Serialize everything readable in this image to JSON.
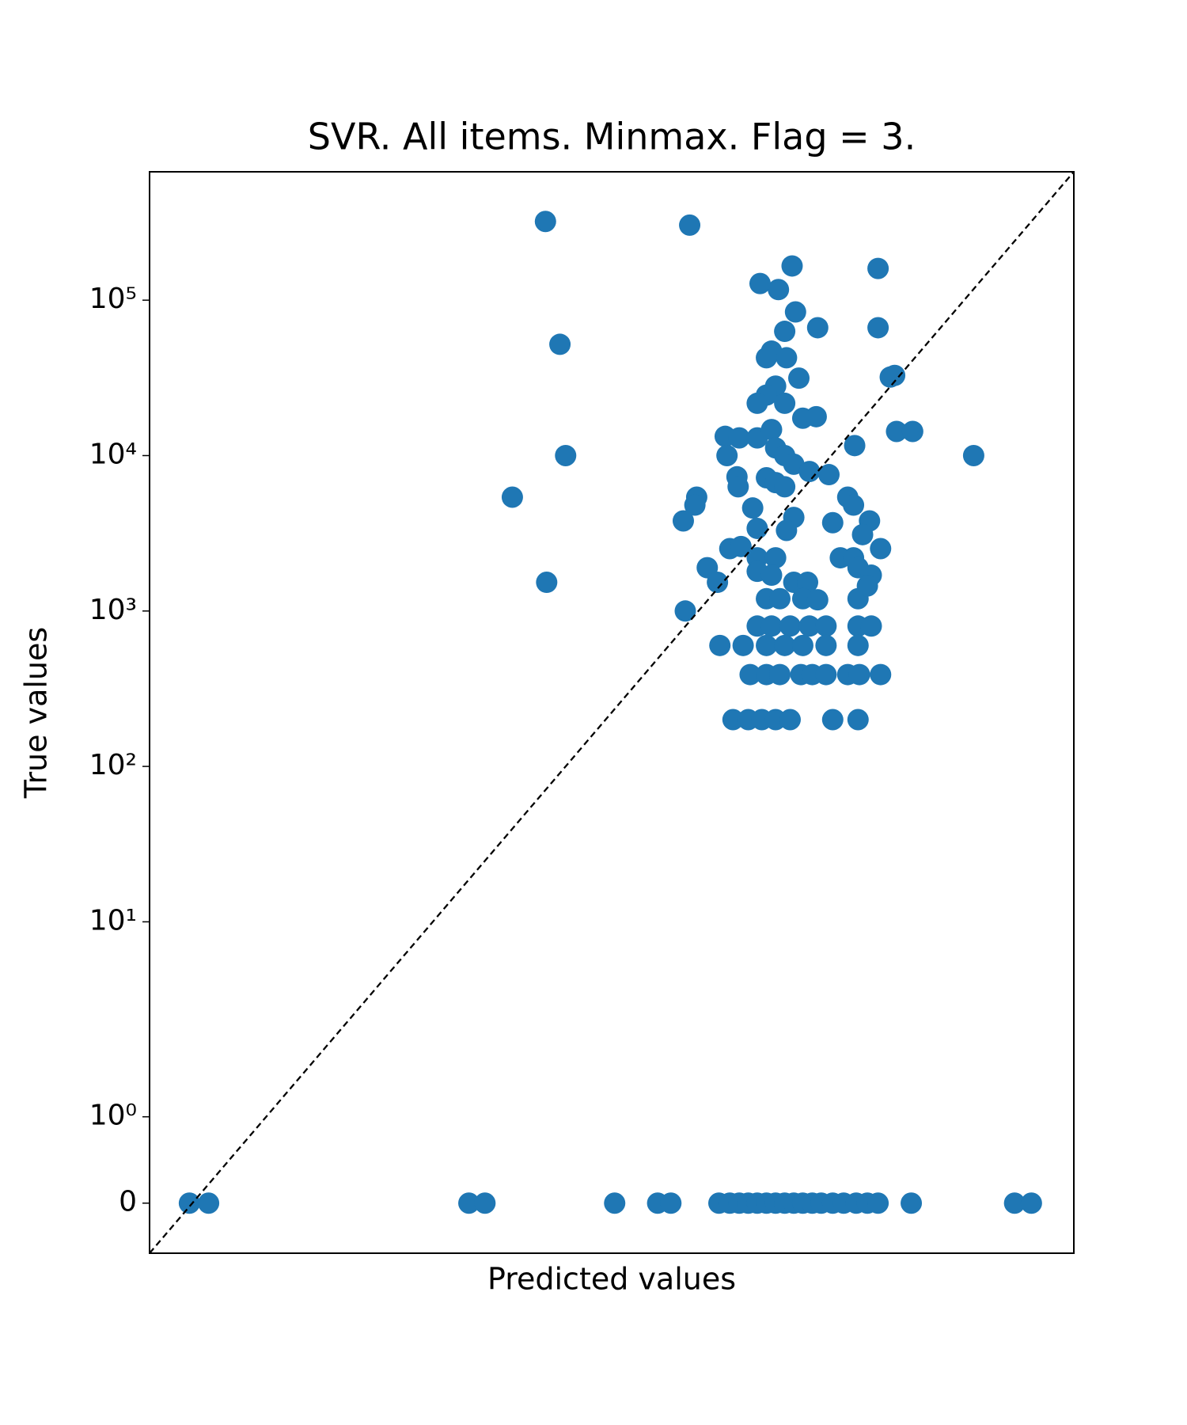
{
  "chart_data": {
    "type": "scatter",
    "title": "SVR. All items. Minmax. Flag = 3.",
    "xlabel": "Predicted values",
    "ylabel": "True values",
    "color": "#1f77b4",
    "xscale": "symlog",
    "yscale": "symlog",
    "linthresh": 2,
    "diagonal": true,
    "xlim": [
      -0.58,
      670000
    ],
    "ylim": [
      -0.58,
      670000
    ],
    "yticks": [
      0,
      {
        "value": 1,
        "label": "10⁰"
      },
      {
        "value": 10,
        "label": "10¹"
      },
      {
        "value": 100,
        "label": "10²"
      },
      {
        "value": 1000,
        "label": "10³"
      },
      {
        "value": 10000,
        "label": "10⁴"
      },
      {
        "value": 100000,
        "label": "10⁵"
      }
    ],
    "x": [
      -0.04,
      0.22,
      18.7,
      24.7,
      234,
      493,
      620,
      1426,
      1722,
      2028,
      2371,
      2770,
      3250,
      3810,
      4460,
      5220,
      6100,
      7190,
      8400,
      10250,
      12400,
      15400,
      18700,
      22500,
      40000,
      240000,
      321000,
      70.5,
      859,
      5070,
      22500,
      2910,
      4000,
      5380,
      7900,
      22500,
      90.6,
      4460,
      3550,
      4600,
      3250,
      30000,
      27800,
      5700,
      3810,
      3250,
      2770,
      4460,
      6100,
      7700,
      31000,
      41000,
      1590,
      2028,
      2770,
      3550,
      3810,
      15000,
      118000,
      100,
      1640,
      4460,
      5220,
      6850,
      9600,
      1950,
      3250,
      3810,
      1990,
      4460,
      39.7,
      970,
      13300,
      940,
      2560,
      14700,
      5220,
      769,
      10250,
      19400,
      2770,
      4600,
      17200,
      23500,
      1722,
      2090,
      1165,
      11700,
      14700,
      2770,
      3810,
      1390,
      2770,
      3550,
      5220,
      6630,
      15900,
      20000,
      72,
      3250,
      4100,
      6100,
      7900,
      15900,
      18700,
      796,
      2770,
      3550,
      4900,
      6850,
      9130,
      15900,
      20000,
      1450,
      2170,
      3250,
      4460,
      6100,
      9130,
      15900,
      2450,
      3250,
      4100,
      5900,
      7190,
      9130,
      13300,
      16300,
      23500,
      1820,
      2371,
      3000,
      3810,
      4900,
      10250,
      15900
    ],
    "y": [
      0,
      0,
      0,
      0,
      0,
      0,
      0,
      0,
      0,
      0,
      0,
      0,
      0,
      0,
      0,
      0,
      0,
      0,
      0,
      0,
      0,
      0,
      0,
      0,
      0,
      0,
      0,
      321000,
      304000,
      166000,
      160000,
      128000,
      117000,
      84000,
      66500,
      66500,
      52000,
      63000,
      47000,
      42600,
      42600,
      32800,
      32000,
      31500,
      28000,
      24500,
      21700,
      21700,
      17400,
      17800,
      14300,
      14300,
      13300,
      13000,
      13000,
      14700,
      11200,
      11600,
      10000,
      10000,
      10000,
      10000,
      8800,
      7900,
      7540,
      7300,
      7200,
      6700,
      6300,
      6300,
      5400,
      5400,
      5400,
      4800,
      4600,
      4800,
      4000,
      3800,
      3700,
      3800,
      3400,
      3300,
      3100,
      2520,
      2520,
      2600,
      1900,
      2200,
      2200,
      2200,
      2200,
      1530,
      1800,
      1700,
      1530,
      1530,
      1900,
      1700,
      1530,
      1200,
      1200,
      1200,
      1180,
      1200,
      1450,
      1000,
      800,
      800,
      800,
      800,
      800,
      800,
      800,
      600,
      600,
      600,
      600,
      600,
      600,
      600,
      390,
      390,
      390,
      390,
      390,
      390,
      390,
      390,
      390,
      200,
      200,
      200,
      200,
      200,
      200,
      200
    ]
  }
}
